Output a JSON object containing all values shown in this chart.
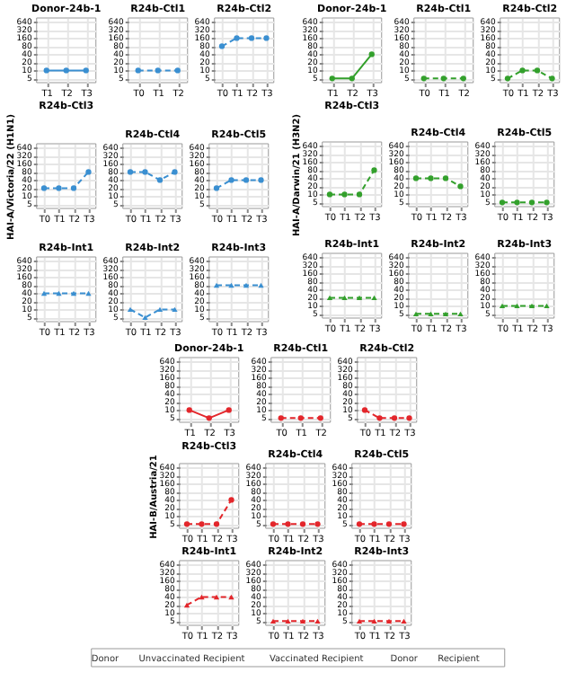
{
  "chart_data": [
    {
      "type": "line",
      "title": "Donor-24b-1",
      "categories": [
        "T1",
        "T2",
        "T3"
      ],
      "values": [
        10,
        10,
        10
      ],
      "color": "#3a8fd1",
      "marker": "circle",
      "line_style": "solid",
      "log": true,
      "ylim": [
        3.5,
        900
      ],
      "yticks": [
        5,
        10,
        20,
        40,
        80,
        160,
        320,
        640
      ],
      "grid": true
    },
    {
      "type": "line",
      "title": "R24b-Ctl1",
      "categories": [
        "T0",
        "T1",
        "T2"
      ],
      "values": [
        10,
        10,
        10
      ],
      "color": "#3a8fd1",
      "marker": "circle",
      "line_style": "dashed",
      "log": true,
      "ylim": [
        3.5,
        900
      ],
      "yticks": [
        5,
        10,
        20,
        40,
        80,
        160,
        320,
        640
      ],
      "grid": true
    },
    {
      "type": "line",
      "title": "R24b-Ctl2",
      "categories": [
        "T0",
        "T1",
        "T2",
        "T3"
      ],
      "values": [
        80,
        160,
        160,
        160
      ],
      "color": "#3a8fd1",
      "marker": "circle",
      "line_style": "dashed",
      "log": true,
      "ylim": [
        3.5,
        900
      ],
      "yticks": [
        5,
        10,
        20,
        40,
        80,
        160,
        320,
        640
      ],
      "grid": true
    },
    {
      "type": "line",
      "title": "R24b-Ctl3",
      "ylabel": "HAI-A/Victoria/22 (H1N1)",
      "categories": [
        "T0",
        "T1",
        "T2",
        "T3"
      ],
      "values": [
        20,
        20,
        20,
        80
      ],
      "color": "#3a8fd1",
      "marker": "circle",
      "line_style": "dashed",
      "log": true,
      "ylim": [
        3.5,
        900
      ],
      "yticks": [
        5,
        10,
        20,
        40,
        80,
        160,
        320,
        640
      ],
      "grid": true
    },
    {
      "type": "line",
      "title": "R24b-Ctl4",
      "categories": [
        "T0",
        "T1",
        "T2",
        "T3"
      ],
      "values": [
        80,
        80,
        40,
        80
      ],
      "color": "#3a8fd1",
      "marker": "circle",
      "line_style": "dashed",
      "log": true,
      "ylim": [
        3.5,
        900
      ],
      "yticks": [
        5,
        10,
        20,
        40,
        80,
        160,
        320,
        640
      ],
      "grid": true
    },
    {
      "type": "line",
      "title": "R24b-Ctl5",
      "categories": [
        "T0",
        "T1",
        "T2",
        "T3"
      ],
      "values": [
        20,
        40,
        40,
        40
      ],
      "color": "#3a8fd1",
      "marker": "circle",
      "line_style": "dashed",
      "log": true,
      "ylim": [
        3.5,
        900
      ],
      "yticks": [
        5,
        10,
        20,
        40,
        80,
        160,
        320,
        640
      ],
      "grid": true
    },
    {
      "type": "line",
      "title": "R24b-Int1",
      "categories": [
        "T0",
        "T1",
        "T2",
        "T3"
      ],
      "values": [
        40,
        40,
        40,
        40
      ],
      "color": "#3a8fd1",
      "marker": "triangle",
      "line_style": "dashed",
      "log": true,
      "ylim": [
        3.5,
        900
      ],
      "yticks": [
        5,
        10,
        20,
        40,
        80,
        160,
        320,
        640
      ],
      "grid": true
    },
    {
      "type": "line",
      "title": "R24b-Int2",
      "categories": [
        "T0",
        "T1",
        "T2",
        "T3"
      ],
      "values": [
        10,
        5,
        10,
        10
      ],
      "color": "#3a8fd1",
      "marker": "triangle",
      "line_style": "dashed",
      "log": true,
      "ylim": [
        3.5,
        900
      ],
      "yticks": [
        5,
        10,
        20,
        40,
        80,
        160,
        320,
        640
      ],
      "grid": true
    },
    {
      "type": "line",
      "title": "R24b-Int3",
      "categories": [
        "T0",
        "T1",
        "T2",
        "T3"
      ],
      "values": [
        80,
        80,
        80,
        80
      ],
      "color": "#3a8fd1",
      "marker": "triangle",
      "line_style": "dashed",
      "log": true,
      "ylim": [
        3.5,
        900
      ],
      "yticks": [
        5,
        10,
        20,
        40,
        80,
        160,
        320,
        640
      ],
      "grid": true
    },
    {
      "type": "line",
      "title": "Donor-24b-1",
      "categories": [
        "T1",
        "T2",
        "T3"
      ],
      "values": [
        5,
        5,
        40
      ],
      "color": "#33a02c",
      "marker": "circle",
      "line_style": "solid",
      "log": true,
      "ylim": [
        3.5,
        900
      ],
      "yticks": [
        5,
        10,
        20,
        40,
        80,
        160,
        320,
        640
      ],
      "grid": true
    },
    {
      "type": "line",
      "title": "R24b-Ctl1",
      "categories": [
        "T0",
        "T1",
        "T2"
      ],
      "values": [
        5,
        5,
        5
      ],
      "color": "#33a02c",
      "marker": "circle",
      "line_style": "dashed",
      "log": true,
      "ylim": [
        3.5,
        900
      ],
      "yticks": [
        5,
        10,
        20,
        40,
        80,
        160,
        320,
        640
      ],
      "grid": true
    },
    {
      "type": "line",
      "title": "R24b-Ctl2",
      "categories": [
        "T0",
        "T1",
        "T2",
        "T3"
      ],
      "values": [
        5,
        10,
        10,
        5
      ],
      "color": "#33a02c",
      "marker": "circle",
      "line_style": "dashed",
      "log": true,
      "ylim": [
        3.5,
        900
      ],
      "yticks": [
        5,
        10,
        20,
        40,
        80,
        160,
        320,
        640
      ],
      "grid": true
    },
    {
      "type": "line",
      "title": "R24b-Ctl3",
      "ylabel": "HAI-A/Darwin/21 (H3N2)",
      "categories": [
        "T0",
        "T1",
        "T2",
        "T3"
      ],
      "values": [
        10,
        10,
        10,
        80
      ],
      "color": "#33a02c",
      "marker": "circle",
      "line_style": "dashed",
      "log": true,
      "ylim": [
        3.5,
        900
      ],
      "yticks": [
        5,
        10,
        20,
        40,
        80,
        160,
        320,
        640
      ],
      "grid": true
    },
    {
      "type": "line",
      "title": "R24b-Ctl4",
      "categories": [
        "T0",
        "T1",
        "T2",
        "T3"
      ],
      "values": [
        40,
        40,
        40,
        20
      ],
      "color": "#33a02c",
      "marker": "circle",
      "line_style": "dashed",
      "log": true,
      "ylim": [
        3.5,
        900
      ],
      "yticks": [
        5,
        10,
        20,
        40,
        80,
        160,
        320,
        640
      ],
      "grid": true
    },
    {
      "type": "line",
      "title": "R24b-Ctl5",
      "categories": [
        "T0",
        "T1",
        "T2",
        "T3"
      ],
      "values": [
        5,
        5,
        5,
        5
      ],
      "color": "#33a02c",
      "marker": "circle",
      "line_style": "dashed",
      "log": true,
      "ylim": [
        3.5,
        900
      ],
      "yticks": [
        5,
        10,
        20,
        40,
        80,
        160,
        320,
        640
      ],
      "grid": true
    },
    {
      "type": "line",
      "title": "R24b-Int1",
      "categories": [
        "T0",
        "T1",
        "T2",
        "T3"
      ],
      "values": [
        20,
        20,
        20,
        20
      ],
      "color": "#33a02c",
      "marker": "triangle",
      "line_style": "dashed",
      "log": true,
      "ylim": [
        3.5,
        900
      ],
      "yticks": [
        5,
        10,
        20,
        40,
        80,
        160,
        320,
        640
      ],
      "grid": true
    },
    {
      "type": "line",
      "title": "R24b-Int2",
      "categories": [
        "T0",
        "T1",
        "T2",
        "T3"
      ],
      "values": [
        5,
        5,
        5,
        5
      ],
      "color": "#33a02c",
      "marker": "triangle",
      "line_style": "dashed",
      "log": true,
      "ylim": [
        3.5,
        900
      ],
      "yticks": [
        5,
        10,
        20,
        40,
        80,
        160,
        320,
        640
      ],
      "grid": true
    },
    {
      "type": "line",
      "title": "R24b-Int3",
      "categories": [
        "T0",
        "T1",
        "T2",
        "T3"
      ],
      "values": [
        10,
        10,
        10,
        10
      ],
      "color": "#33a02c",
      "marker": "triangle",
      "line_style": "dashed",
      "log": true,
      "ylim": [
        3.5,
        900
      ],
      "yticks": [
        5,
        10,
        20,
        40,
        80,
        160,
        320,
        640
      ],
      "grid": true
    },
    {
      "type": "line",
      "title": "Donor-24b-1",
      "categories": [
        "T1",
        "T2",
        "T3"
      ],
      "values": [
        10,
        5,
        10
      ],
      "color": "#e3262b",
      "marker": "circle",
      "line_style": "solid",
      "log": true,
      "ylim": [
        3.5,
        900
      ],
      "yticks": [
        5,
        10,
        20,
        40,
        80,
        160,
        320,
        640
      ],
      "grid": true
    },
    {
      "type": "line",
      "title": "R24b-Ctl1",
      "categories": [
        "T0",
        "T1",
        "T2"
      ],
      "values": [
        5,
        5,
        5
      ],
      "color": "#e3262b",
      "marker": "circle",
      "line_style": "dashed",
      "log": true,
      "ylim": [
        3.5,
        900
      ],
      "yticks": [
        5,
        10,
        20,
        40,
        80,
        160,
        320,
        640
      ],
      "grid": true
    },
    {
      "type": "line",
      "title": "R24b-Ctl2",
      "categories": [
        "T0",
        "T1",
        "T2",
        "T3"
      ],
      "values": [
        10,
        5,
        5,
        5
      ],
      "color": "#e3262b",
      "marker": "circle",
      "line_style": "dashed",
      "log": true,
      "ylim": [
        3.5,
        900
      ],
      "yticks": [
        5,
        10,
        20,
        40,
        80,
        160,
        320,
        640
      ],
      "grid": true
    },
    {
      "type": "line",
      "title": "R24b-Ctl3",
      "ylabel": "HAI-B/Austria/21",
      "categories": [
        "T0",
        "T1",
        "T2",
        "T3"
      ],
      "values": [
        5,
        5,
        5,
        40
      ],
      "color": "#e3262b",
      "marker": "circle",
      "line_style": "dashed",
      "log": true,
      "ylim": [
        3.5,
        900
      ],
      "yticks": [
        5,
        10,
        20,
        40,
        80,
        160,
        320,
        640
      ],
      "grid": true
    },
    {
      "type": "line",
      "title": "R24b-Ctl4",
      "categories": [
        "T0",
        "T1",
        "T2",
        "T3"
      ],
      "values": [
        5,
        5,
        5,
        5
      ],
      "color": "#e3262b",
      "marker": "circle",
      "line_style": "dashed",
      "log": true,
      "ylim": [
        3.5,
        900
      ],
      "yticks": [
        5,
        10,
        20,
        40,
        80,
        160,
        320,
        640
      ],
      "grid": true
    },
    {
      "type": "line",
      "title": "R24b-Ctl5",
      "categories": [
        "T0",
        "T1",
        "T2",
        "T3"
      ],
      "values": [
        5,
        5,
        5,
        5
      ],
      "color": "#e3262b",
      "marker": "circle",
      "line_style": "dashed",
      "log": true,
      "ylim": [
        3.5,
        900
      ],
      "yticks": [
        5,
        10,
        20,
        40,
        80,
        160,
        320,
        640
      ],
      "grid": true
    },
    {
      "type": "line",
      "title": "R24b-Int1",
      "categories": [
        "T0",
        "T1",
        "T2",
        "T3"
      ],
      "values": [
        20,
        40,
        40,
        40
      ],
      "color": "#e3262b",
      "marker": "triangle",
      "line_style": "dashed",
      "log": true,
      "ylim": [
        3.5,
        900
      ],
      "yticks": [
        5,
        10,
        20,
        40,
        80,
        160,
        320,
        640
      ],
      "grid": true
    },
    {
      "type": "line",
      "title": "R24b-Int2",
      "categories": [
        "T0",
        "T1",
        "T2",
        "T3"
      ],
      "values": [
        5,
        5,
        5,
        5
      ],
      "color": "#e3262b",
      "marker": "triangle",
      "line_style": "dashed",
      "log": true,
      "ylim": [
        3.5,
        900
      ],
      "yticks": [
        5,
        10,
        20,
        40,
        80,
        160,
        320,
        640
      ],
      "grid": true
    },
    {
      "type": "line",
      "title": "R24b-Int3",
      "categories": [
        "T0",
        "T1",
        "T2",
        "T3"
      ],
      "values": [
        5,
        5,
        5,
        5
      ],
      "color": "#e3262b",
      "marker": "triangle",
      "line_style": "dashed",
      "log": true,
      "ylim": [
        3.5,
        900
      ],
      "yticks": [
        5,
        10,
        20,
        40,
        80,
        160,
        320,
        640
      ],
      "grid": true
    },
    {
      "type": "other",
      "annotations": [
        "Donor",
        "Unvaccinated Recipient",
        "Vaccinated Recipient",
        "Donor",
        "Recipient"
      ]
    }
  ]
}
